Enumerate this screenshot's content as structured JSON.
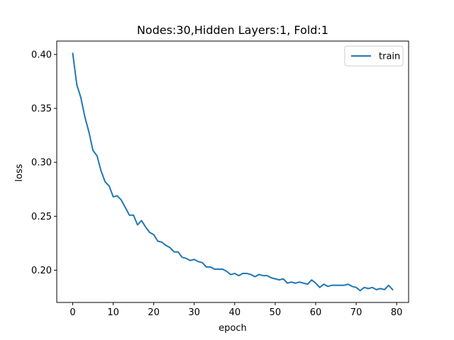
{
  "chart_data": {
    "type": "line",
    "title": "Nodes:30,Hidden Layers:1, Fold:1",
    "xlabel": "epoch",
    "ylabel": "loss",
    "xlim": [
      -3.95,
      82.95
    ],
    "ylim": [
      0.1701,
      0.4124
    ],
    "xticks": [
      0,
      10,
      20,
      30,
      40,
      50,
      60,
      70,
      80
    ],
    "xtick_labels": [
      "0",
      "10",
      "20",
      "30",
      "40",
      "50",
      "60",
      "70",
      "80"
    ],
    "yticks": [
      0.2,
      0.25,
      0.3,
      0.35,
      0.4
    ],
    "ytick_labels": [
      "0.20",
      "0.25",
      "0.30",
      "0.35",
      "0.40"
    ],
    "grid": false,
    "legend": {
      "placement": "upper-right",
      "entries": [
        "train"
      ]
    },
    "series": [
      {
        "name": "train",
        "color": "#1f77b4",
        "x": [
          0,
          1,
          2,
          3,
          4,
          5,
          6,
          7,
          8,
          9,
          10,
          11,
          12,
          13,
          14,
          15,
          16,
          17,
          18,
          19,
          20,
          21,
          22,
          23,
          24,
          25,
          26,
          27,
          28,
          29,
          30,
          31,
          32,
          33,
          34,
          35,
          36,
          37,
          38,
          39,
          40,
          41,
          42,
          43,
          44,
          45,
          46,
          47,
          48,
          49,
          50,
          51,
          52,
          53,
          54,
          55,
          56,
          57,
          58,
          59,
          60,
          61,
          62,
          63,
          64,
          65,
          66,
          67,
          68,
          69,
          70,
          71,
          72,
          73,
          74,
          75,
          76,
          77,
          78,
          79
        ],
        "values": [
          0.401,
          0.372,
          0.36,
          0.342,
          0.328,
          0.311,
          0.306,
          0.292,
          0.282,
          0.278,
          0.268,
          0.269,
          0.265,
          0.258,
          0.251,
          0.251,
          0.242,
          0.246,
          0.24,
          0.235,
          0.233,
          0.227,
          0.226,
          0.223,
          0.221,
          0.217,
          0.217,
          0.212,
          0.211,
          0.209,
          0.21,
          0.208,
          0.207,
          0.203,
          0.203,
          0.201,
          0.201,
          0.201,
          0.199,
          0.196,
          0.197,
          0.195,
          0.197,
          0.197,
          0.196,
          0.194,
          0.196,
          0.195,
          0.195,
          0.193,
          0.192,
          0.191,
          0.192,
          0.188,
          0.189,
          0.188,
          0.189,
          0.188,
          0.187,
          0.191,
          0.188,
          0.184,
          0.187,
          0.185,
          0.186,
          0.186,
          0.186,
          0.186,
          0.187,
          0.185,
          0.184,
          0.181,
          0.184,
          0.183,
          0.184,
          0.182,
          0.183,
          0.182,
          0.186,
          0.182
        ]
      }
    ]
  }
}
